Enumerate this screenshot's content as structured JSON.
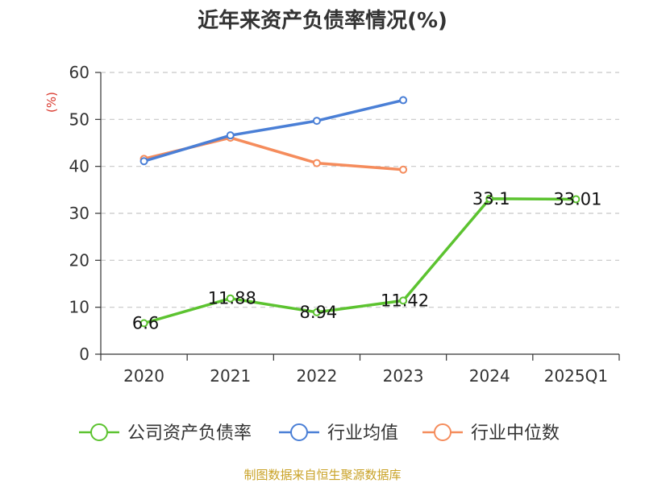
{
  "chart_data": {
    "type": "line",
    "title": "近年来资产负债率情况(%)",
    "ylabel": "(%)",
    "xlabel": "",
    "categories": [
      "2020",
      "2021",
      "2022",
      "2023",
      "2024",
      "2025Q1"
    ],
    "ylim": [
      0,
      60
    ],
    "yticks": [
      "0",
      "10",
      "20",
      "30",
      "40",
      "50",
      "60"
    ],
    "grid": true,
    "legend_position": "bottom",
    "series": [
      {
        "name": "公司资产负债率",
        "color": "#5cc330",
        "values": [
          6.6,
          11.88,
          8.94,
          11.42,
          33.1,
          33.01
        ],
        "labels": [
          "6.6",
          "11.88",
          "8.94",
          "11.42",
          "33.1",
          "33.01"
        ]
      },
      {
        "name": "行业均值",
        "color": "#4a7fd6",
        "values": [
          41.1,
          46.6,
          49.7,
          54.1,
          null,
          null
        ],
        "labels": []
      },
      {
        "name": "行业中位数",
        "color": "#f58c5c",
        "values": [
          41.6,
          46.1,
          40.7,
          39.3,
          null,
          null
        ],
        "labels": []
      }
    ],
    "source": "制图数据来自恒生聚源数据库"
  }
}
